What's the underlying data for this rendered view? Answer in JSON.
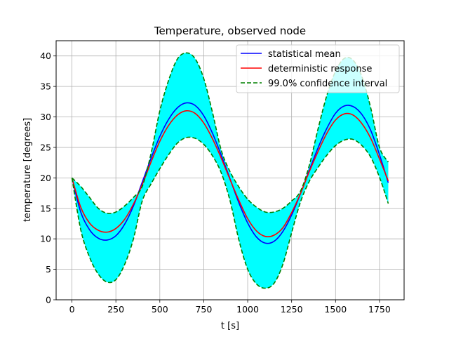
{
  "chart_data": {
    "type": "line",
    "title": "Temperature, observed node",
    "xlabel": "t [s]",
    "ylabel": "temperature [degrees]",
    "xlim": [
      -90,
      1890
    ],
    "ylim": [
      0,
      42.5
    ],
    "xticks": [
      0,
      250,
      500,
      750,
      1000,
      1250,
      1500,
      1750
    ],
    "yticks": [
      0,
      5,
      10,
      15,
      20,
      25,
      30,
      35,
      40
    ],
    "grid": true,
    "legend_position": "top-right",
    "x": [
      0,
      50,
      100,
      150,
      200,
      250,
      300,
      350,
      400,
      450,
      500,
      550,
      600,
      650,
      700,
      750,
      800,
      850,
      900,
      950,
      1000,
      1050,
      1100,
      1150,
      1200,
      1250,
      1300,
      1350,
      1400,
      1450,
      1500,
      1550,
      1600,
      1650,
      1700,
      1750,
      1800
    ],
    "series": [
      {
        "name": "statistical mean",
        "color": "#0000ff",
        "style": "solid",
        "values": [
          20.0,
          14.4,
          11.5,
          10.1,
          9.8,
          10.5,
          12.4,
          15.4,
          19.3,
          23.2,
          26.8,
          29.6,
          31.5,
          32.3,
          31.9,
          30.2,
          27.3,
          23.7,
          19.8,
          15.9,
          12.6,
          10.3,
          9.3,
          9.6,
          11.2,
          13.9,
          17.4,
          21.2,
          24.9,
          28.1,
          30.6,
          31.8,
          31.7,
          30.4,
          27.8,
          23.8,
          19.2
        ]
      },
      {
        "name": "deterministic response",
        "color": "#ff0000",
        "style": "solid",
        "values": [
          20.0,
          15.2,
          12.6,
          11.4,
          11.1,
          11.7,
          13.2,
          15.7,
          18.9,
          22.6,
          26.0,
          28.6,
          30.3,
          31.0,
          30.6,
          29.0,
          26.4,
          23.2,
          19.7,
          16.3,
          13.3,
          11.3,
          10.4,
          10.6,
          11.8,
          14.3,
          17.4,
          21.0,
          24.3,
          27.3,
          29.5,
          30.5,
          30.3,
          28.9,
          26.5,
          23.1,
          19.5
        ]
      },
      {
        "name": "99.0% confidence interval",
        "color": "#008000",
        "style": "dashed",
        "upper": [
          20.0,
          18.6,
          16.8,
          15.0,
          14.2,
          14.4,
          15.4,
          16.8,
          18.6,
          24.0,
          31.0,
          36.0,
          39.5,
          40.5,
          39.6,
          36.3,
          30.7,
          24.5,
          21.0,
          18.5,
          16.5,
          15.2,
          14.4,
          14.4,
          15.0,
          16.2,
          17.8,
          22.0,
          28.0,
          33.5,
          37.5,
          39.6,
          39.3,
          36.6,
          31.5,
          25.0,
          22.6
        ],
        "lower": [
          20.0,
          11.5,
          7.0,
          4.2,
          2.9,
          3.3,
          5.8,
          10.0,
          16.2,
          19.0,
          21.5,
          23.8,
          25.7,
          26.6,
          26.5,
          25.5,
          23.6,
          20.8,
          16.2,
          9.8,
          5.0,
          2.6,
          1.9,
          2.7,
          5.8,
          11.0,
          16.0,
          19.4,
          21.7,
          23.7,
          25.3,
          26.2,
          26.3,
          25.3,
          23.4,
          20.1,
          15.8
        ]
      }
    ],
    "colors": {
      "band_fill": "#00ffff",
      "grid": "#b0b0b0",
      "axes": "#000000"
    }
  }
}
